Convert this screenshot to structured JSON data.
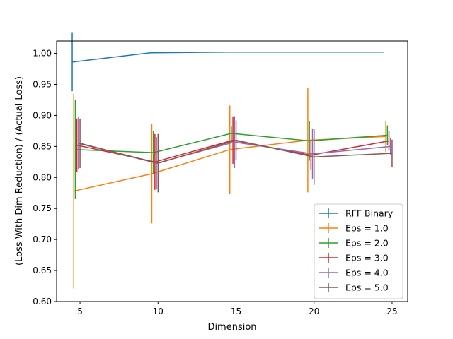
{
  "chart_data": {
    "type": "line",
    "title": "",
    "xlabel": "Dimension",
    "ylabel": "(Loss With Dim Reduction) / (Actual Loss)",
    "xlim": [
      3.5,
      26.0
    ],
    "ylim": [
      0.6,
      1.02
    ],
    "x_ticks": [
      "5",
      "10",
      "15",
      "20",
      "25"
    ],
    "y_ticks": [
      "0.60",
      "0.65",
      "0.70",
      "0.75",
      "0.80",
      "0.85",
      "0.90",
      "0.95",
      "1.00"
    ],
    "grid": false,
    "legend_position": "lower right",
    "series": [
      {
        "name": "RFF Binary",
        "color": "#1f77b4",
        "x": [
          4.5,
          9.5,
          14.5,
          19.5,
          24.5
        ],
        "y": [
          0.986,
          1.001,
          1.002,
          1.002,
          1.002
        ],
        "err": [
          0.047,
          0.0,
          0.0,
          0.0,
          0.0
        ]
      },
      {
        "name": "Eps = 1.0",
        "color": "#ff7f0e",
        "x": [
          4.6,
          9.6,
          14.6,
          19.6,
          24.6
        ],
        "y": [
          0.778,
          0.806,
          0.845,
          0.86,
          0.866
        ],
        "err": [
          0.157,
          0.08,
          0.071,
          0.084,
          0.025
        ]
      },
      {
        "name": "Eps = 2.0",
        "color": "#2ca02c",
        "x": [
          4.7,
          9.7,
          14.7,
          19.7,
          24.7
        ],
        "y": [
          0.845,
          0.84,
          0.871,
          0.859,
          0.868
        ],
        "err": [
          0.08,
          0.035,
          0.011,
          0.032,
          0.016
        ]
      },
      {
        "name": "Eps = 3.0",
        "color": "#d62728",
        "x": [
          4.8,
          9.8,
          14.8,
          19.8,
          24.8
        ],
        "y": [
          0.852,
          0.825,
          0.86,
          0.836,
          0.859
        ],
        "err": [
          0.043,
          0.045,
          0.038,
          0.024,
          0.016
        ]
      },
      {
        "name": "Eps = 4.0",
        "color": "#9467bd",
        "x": [
          4.9,
          9.9,
          14.9,
          19.9,
          24.9
        ],
        "y": [
          0.855,
          0.823,
          0.857,
          0.838,
          0.85
        ],
        "err": [
          0.042,
          0.042,
          0.042,
          0.041,
          0.013
        ]
      },
      {
        "name": "Eps = 5.0",
        "color": "#8c564b",
        "x": [
          5.0,
          10.0,
          15.0,
          20.0,
          25.0
        ],
        "y": [
          0.855,
          0.823,
          0.86,
          0.833,
          0.839
        ],
        "err": [
          0.04,
          0.047,
          0.032,
          0.045,
          0.022
        ]
      }
    ]
  }
}
